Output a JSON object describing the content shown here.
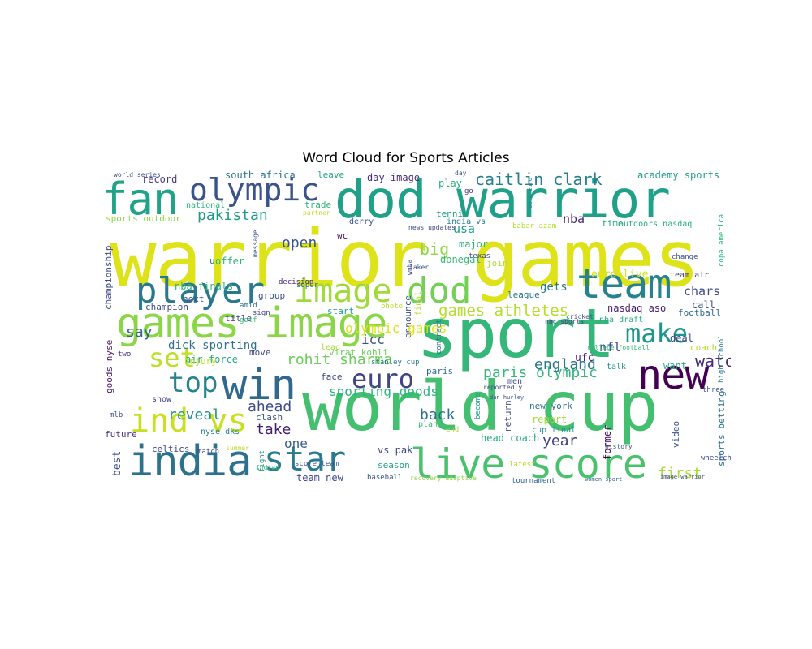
{
  "title": "Word Cloud for Sports Articles",
  "words": [
    {
      "text": "warrior games",
      "color": "#dde318"
    },
    {
      "text": "world cup",
      "color": "#44bf70"
    },
    {
      "text": "dod warrior",
      "color": "#1fa088"
    },
    {
      "text": "sport",
      "color": "#35b779"
    },
    {
      "text": "games image",
      "color": "#8bd646"
    },
    {
      "text": "india",
      "color": "#2c728e"
    },
    {
      "text": "win",
      "color": "#31688e"
    },
    {
      "text": "new",
      "color": "#440154"
    },
    {
      "text": "fan",
      "color": "#20a386"
    },
    {
      "text": "olympic",
      "color": "#3b528b"
    },
    {
      "text": "live score",
      "color": "#4ac16d"
    },
    {
      "text": "team",
      "color": "#26828e"
    },
    {
      "text": "player",
      "color": "#2a788e"
    },
    {
      "text": "image",
      "color": "#a0da39"
    },
    {
      "text": "dod",
      "color": "#73d056"
    },
    {
      "text": "ind vs",
      "color": "#c8e020"
    },
    {
      "text": "star",
      "color": "#297a8e"
    },
    {
      "text": "make",
      "color": "#1f968b"
    },
    {
      "text": "top",
      "color": "#25858e"
    },
    {
      "text": "euro",
      "color": "#414487"
    },
    {
      "text": "set",
      "color": "#bddf26"
    },
    {
      "text": "caitlin clark",
      "color": "#287d8e"
    },
    {
      "text": "pakistan",
      "color": "#1e9b8a"
    },
    {
      "text": "games athletes",
      "color": "#b5de2b"
    },
    {
      "text": "paris olympic",
      "color": "#35b779"
    },
    {
      "text": "rohit sharma",
      "color": "#6ccd5a"
    },
    {
      "text": "england",
      "color": "#2a768e"
    },
    {
      "text": "sporting goods",
      "color": "#2fb47c"
    },
    {
      "text": "watch",
      "color": "#472d7b"
    },
    {
      "text": "open",
      "color": "#39568c"
    },
    {
      "text": "big",
      "color": "#8fd744"
    },
    {
      "text": "ahead",
      "color": "#3e4a89"
    },
    {
      "text": "back",
      "color": "#2e6f8e"
    },
    {
      "text": "reveal",
      "color": "#20928c"
    },
    {
      "text": "take",
      "color": "#481f70"
    },
    {
      "text": "first",
      "color": "#a8db34"
    },
    {
      "text": "year",
      "color": "#433e85"
    },
    {
      "text": "say",
      "color": "#33638d"
    },
    {
      "text": "dick sporting",
      "color": "#2d718e"
    },
    {
      "text": "chars",
      "color": "#3e4989"
    },
    {
      "text": "usa",
      "color": "#1fa187"
    },
    {
      "text": "one",
      "color": "#365d8d"
    },
    {
      "text": "south africa",
      "color": "#2c738e"
    },
    {
      "text": "academy sports",
      "color": "#1e9c89"
    },
    {
      "text": "olympic games",
      "color": "#dde318"
    },
    {
      "text": "nba",
      "color": "#482475"
    },
    {
      "text": "nfl",
      "color": "#3f4788"
    },
    {
      "text": "record",
      "color": "#443a83"
    },
    {
      "text": "gets",
      "color": "#2a788e"
    },
    {
      "text": "ufc",
      "color": "#481d6f"
    },
    {
      "text": "leave",
      "color": "#22a785"
    },
    {
      "text": "day image",
      "color": "#472c7a"
    },
    {
      "text": "play",
      "color": "#29af7f"
    },
    {
      "text": "tennis",
      "color": "#1f9a8a"
    },
    {
      "text": "sports outdoor",
      "color": "#90d743"
    },
    {
      "text": "india vs",
      "color": "#287c8e"
    },
    {
      "text": "major",
      "color": "#31b57b"
    },
    {
      "text": "donegal",
      "color": "#3aba76"
    },
    {
      "text": "join",
      "color": "#b0dd2f"
    },
    {
      "text": "league",
      "color": "#2c728e"
    },
    {
      "text": "football",
      "color": "#2e6e8e"
    },
    {
      "text": "coach",
      "color": "#b8de29"
    },
    {
      "text": "team air",
      "color": "#46337f"
    },
    {
      "text": "deal",
      "color": "#3d4d8a"
    },
    {
      "text": "call",
      "color": "#3b528b"
    },
    {
      "text": "want",
      "color": "#26ad81"
    },
    {
      "text": "talk",
      "color": "#23898e"
    },
    {
      "text": "face",
      "color": "#3e4989"
    },
    {
      "text": "paris",
      "color": "#2e6d8e"
    },
    {
      "text": "report",
      "color": "#a2da37"
    },
    {
      "text": "new york",
      "color": "#2d708e"
    },
    {
      "text": "cup final",
      "color": "#20928c"
    },
    {
      "text": "head coach",
      "color": "#24aa83"
    },
    {
      "text": "vs pak",
      "color": "#3f4889"
    },
    {
      "text": "season",
      "color": "#1fa287"
    },
    {
      "text": "tournament",
      "color": "#33638d"
    },
    {
      "text": "team new",
      "color": "#3e4989"
    },
    {
      "text": "baseball",
      "color": "#3c508b"
    },
    {
      "text": "recovery adaptive",
      "color": "#8ed645"
    },
    {
      "text": "women sport",
      "color": "#34618d"
    },
    {
      "text": "championship",
      "color": "#3e4c8a"
    },
    {
      "text": "champion",
      "color": "#3e4a89"
    },
    {
      "text": "nba finals",
      "color": "#2fb47c"
    },
    {
      "text": "group",
      "color": "#3b528b"
    },
    {
      "text": "decision",
      "color": "#472a7a"
    },
    {
      "text": "air force",
      "color": "#24aa83"
    },
    {
      "text": "injury",
      "color": "#c5e021"
    },
    {
      "text": "move",
      "color": "#3f4788"
    },
    {
      "text": "virat kohli",
      "color": "#6ece58"
    },
    {
      "text": "lead",
      "color": "#a8db34"
    },
    {
      "text": "announce",
      "color": "#3b528b"
    },
    {
      "text": "final",
      "color": "#b5de2b"
    },
    {
      "text": "start",
      "color": "#1f9e89"
    },
    {
      "text": "super",
      "color": "#33628d"
    },
    {
      "text": "photo",
      "color": "#b8de29"
    },
    {
      "text": "euro live",
      "color": "#d2e21b"
    },
    {
      "text": "nasdaq aso",
      "color": "#481b6d"
    },
    {
      "text": "nba draft",
      "color": "#26ad81"
    },
    {
      "text": "offer",
      "color": "#2fb47c"
    },
    {
      "text": "next",
      "color": "#3b518b"
    },
    {
      "text": "title",
      "color": "#433d84"
    },
    {
      "text": "wc",
      "color": "#471164"
    },
    {
      "text": "u",
      "color": "#2a788e"
    },
    {
      "text": "goods nyse",
      "color": "#481769"
    },
    {
      "text": "nyse dks",
      "color": "#26818e"
    },
    {
      "text": "future",
      "color": "#46337f"
    },
    {
      "text": "best",
      "color": "#3d4e8a"
    },
    {
      "text": "clash",
      "color": "#3b528b"
    },
    {
      "text": "celtics",
      "color": "#3e4989"
    },
    {
      "text": "mlb",
      "color": "#3e4c8a"
    },
    {
      "text": "show",
      "color": "#433e85"
    },
    {
      "text": "two",
      "color": "#482071"
    },
    {
      "text": "trade",
      "color": "#2eb37c"
    },
    {
      "text": "national",
      "color": "#2eb37c"
    },
    {
      "text": "score team",
      "color": "#3b528b"
    },
    {
      "text": "match",
      "color": "#3e4a89"
    },
    {
      "text": "summer",
      "color": "#b8de29"
    },
    {
      "text": "fight",
      "color": "#1f9a8a"
    },
    {
      "text": "stanley cup",
      "color": "#2a768e"
    },
    {
      "text": "plan",
      "color": "#3aba76"
    },
    {
      "text": "end",
      "color": "#b0dd2f"
    },
    {
      "text": "return",
      "color": "#3e4a89"
    },
    {
      "text": "former",
      "color": "#440154"
    },
    {
      "text": "time",
      "color": "#20a486"
    },
    {
      "text": "video",
      "color": "#3b528b"
    },
    {
      "text": "sports betting",
      "color": "#2e6e8e"
    },
    {
      "text": "outdoors nasdaq",
      "color": "#26ad81"
    },
    {
      "text": "babar azam",
      "color": "#b5de2b"
    },
    {
      "text": "copa america",
      "color": "#2fb47c"
    },
    {
      "text": "change",
      "color": "#3b528b"
    },
    {
      "text": "texas",
      "color": "#3e4989"
    },
    {
      "text": "go",
      "color": "#443b84"
    },
    {
      "text": "day",
      "color": "#3b528b"
    },
    {
      "text": "golf",
      "color": "#3aba76"
    },
    {
      "text": "sign",
      "color": "#3e4a89"
    },
    {
      "text": "amid",
      "color": "#2d718e"
    },
    {
      "text": "contract",
      "color": "#2a788e"
    },
    {
      "text": "become",
      "color": "#1f9e89"
    },
    {
      "text": "wnba",
      "color": "#3e4989"
    },
    {
      "text": "laker",
      "color": "#3b528b"
    },
    {
      "text": "image warrior",
      "color": "#3e4989"
    },
    {
      "text": "high school",
      "color": "#2a788e"
    },
    {
      "text": "college football",
      "color": "#35b779"
    },
    {
      "text": "history",
      "color": "#3b528b"
    },
    {
      "text": "nbc sports",
      "color": "#433e85"
    },
    {
      "text": "reportedly",
      "color": "#3e4989"
    },
    {
      "text": "dan hurley",
      "color": "#3b528b"
    },
    {
      "text": "men",
      "color": "#3e4989"
    },
    {
      "text": "latest",
      "color": "#b8de29"
    },
    {
      "text": "indian",
      "color": "#3aba76"
    },
    {
      "text": "derry",
      "color": "#3b528b"
    },
    {
      "text": "news updates",
      "color": "#3e4989"
    },
    {
      "text": "uefa euro",
      "color": "#2a788e"
    },
    {
      "text": "world series",
      "color": "#3e4989"
    },
    {
      "text": "message",
      "color": "#3b528b"
    },
    {
      "text": "partner",
      "color": "#b8de29"
    },
    {
      "text": "cricket",
      "color": "#3b528b"
    },
    {
      "text": "wheelchair basketball",
      "color": "#3e4989"
    },
    {
      "text": "three",
      "color": "#3b528b"
    },
    {
      "text": "icc",
      "color": "#3b528b"
    }
  ]
}
